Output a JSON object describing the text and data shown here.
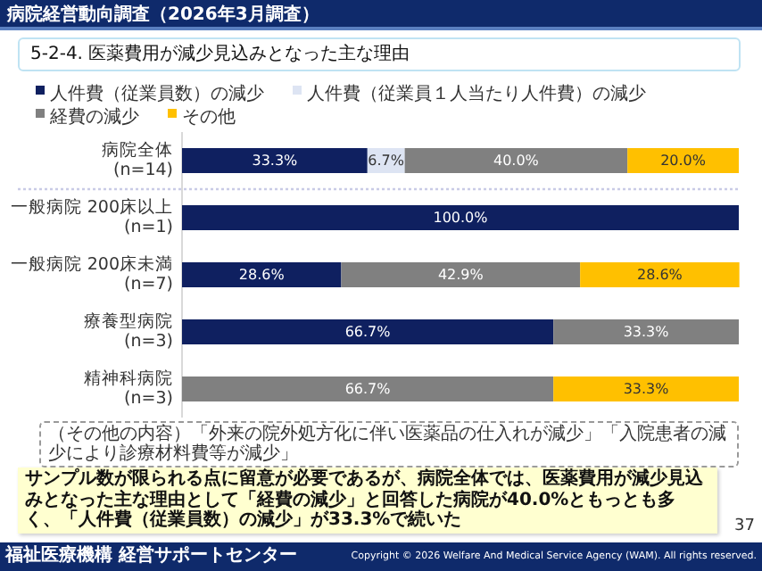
{
  "chart_data": {
    "type": "bar",
    "orientation": "horizontal",
    "stacked": true,
    "title": "5-2-4. 医薬費用が減少見込みとなった主な理由",
    "categories": [
      "病院全体\n(n=14)",
      "一般病院 200床以上\n(n=1)",
      "一般病院 200床未満\n(n=7)",
      "療養型病院\n(n=3)",
      "精神科病院\n(n=3)"
    ],
    "series": [
      {
        "name": "人件費（従業員数）の減少",
        "color": "#0f2060",
        "values": [
          33.3,
          100.0,
          28.6,
          66.7,
          null
        ],
        "value_labels": [
          "33.3%",
          "100.0%",
          "28.6%",
          "66.7%",
          null
        ]
      },
      {
        "name": "人件費（従業員１人当たり人件費）の減少",
        "color": "#dde4f3",
        "values": [
          6.7,
          null,
          null,
          null,
          null
        ],
        "value_labels": [
          "6.7%",
          null,
          null,
          null,
          null
        ]
      },
      {
        "name": "経費の減少",
        "color": "#808080",
        "values": [
          40.0,
          null,
          42.9,
          33.3,
          66.7
        ],
        "value_labels": [
          "40.0%",
          null,
          "42.9%",
          "33.3%",
          "66.7%"
        ]
      },
      {
        "name": "その他",
        "color": "#ffc000",
        "values": [
          20.0,
          null,
          28.6,
          null,
          33.3
        ],
        "value_labels": [
          "20.0%",
          null,
          "28.6%",
          null,
          "33.3%"
        ]
      }
    ],
    "xlim": [
      0,
      100
    ],
    "legend": "top",
    "annotations": [
      "病院経営動向調査（2026年3月調査）",
      "（その他の内容）「外来の院外処方化に伴い医薬品の仕入れが減少」「入院患者の減少により診療材料費等が減少」",
      "サンプル数が限られる点に留意が必要であるが、病院全体では、医薬費用が減少見込みとなった主な理由として「経費の減少」と回答した病院が40.0%ともっとも多く、「人件費（従業員数）の減少」が33.3%で続いた",
      "37",
      "福祉医療機構 経営サポートセンター",
      "Copyright © 2026 Welfare And Medical Service Agency (WAM). All rights reserved."
    ]
  }
}
